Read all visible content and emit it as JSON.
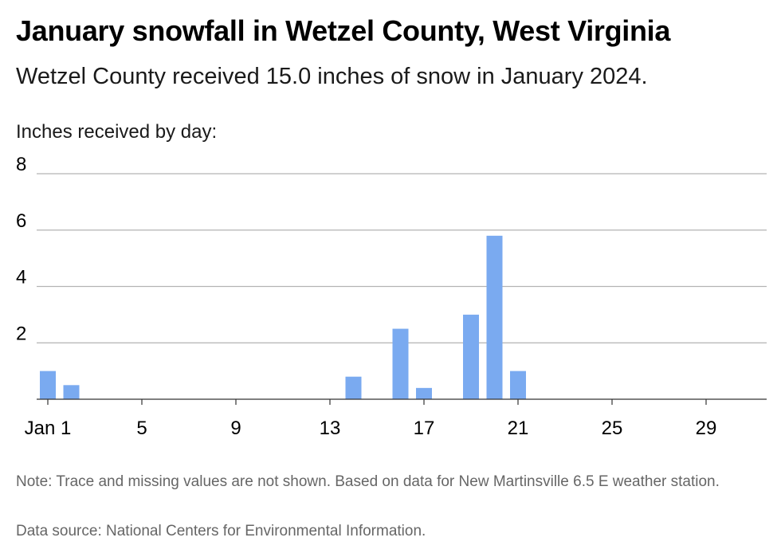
{
  "title": "January snowfall in Wetzel County, West Virginia",
  "subtitle": "Wetzel County received 15.0 inches of snow in January 2024.",
  "y_caption": "Inches received by day:",
  "note": "Note: Trace and missing values are not shown. Based on data for New Martinsville 6.5 E weather station.",
  "source": "Data source: National Centers for Environmental Information.",
  "colors": {
    "bar": "#7aaaf0",
    "grid": "#b3b3b3",
    "text": "#000000",
    "muted": "#666666"
  },
  "chart_data": {
    "type": "bar",
    "title": "January snowfall in Wetzel County, West Virginia",
    "subtitle": "Wetzel County received 15.0 inches of snow in January 2024.",
    "ylabel": "Inches received by day:",
    "xlabel": "",
    "x_domain": [
      1,
      31
    ],
    "ylim": [
      0,
      8
    ],
    "y_ticks": [
      2,
      4,
      6,
      8
    ],
    "x_ticks": [
      {
        "day": 1,
        "label": "Jan 1"
      },
      {
        "day": 5,
        "label": "5"
      },
      {
        "day": 9,
        "label": "9"
      },
      {
        "day": 13,
        "label": "13"
      },
      {
        "day": 17,
        "label": "17"
      },
      {
        "day": 21,
        "label": "21"
      },
      {
        "day": 25,
        "label": "25"
      },
      {
        "day": 29,
        "label": "29"
      }
    ],
    "grid": true,
    "bars": [
      {
        "day": 1,
        "value": 1.0
      },
      {
        "day": 2,
        "value": 0.5
      },
      {
        "day": 14,
        "value": 0.8
      },
      {
        "day": 16,
        "value": 2.5
      },
      {
        "day": 17,
        "value": 0.4
      },
      {
        "day": 19,
        "value": 3.0
      },
      {
        "day": 20,
        "value": 5.8
      },
      {
        "day": 21,
        "value": 1.0
      }
    ]
  }
}
